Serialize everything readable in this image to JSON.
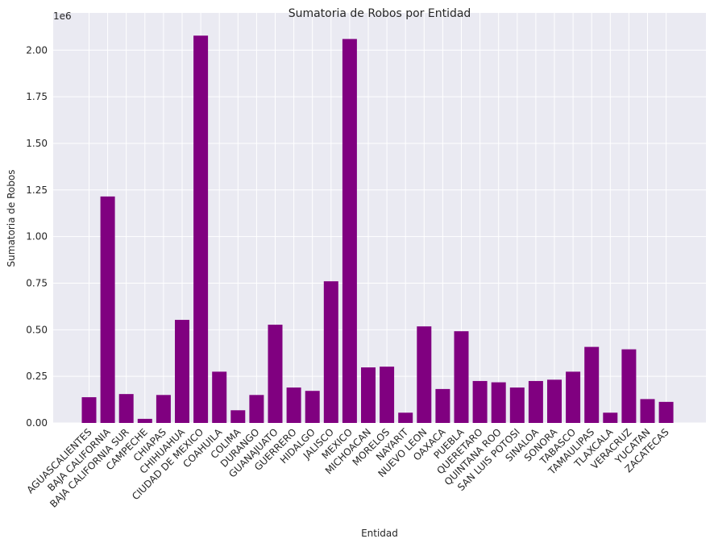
{
  "chart_data": {
    "type": "bar",
    "title": "Sumatoria de Robos por Entidad",
    "xlabel": "Entidad",
    "ylabel": "Sumatoria de Robos",
    "offset_label": "1e6",
    "ylim": [
      0,
      2.2
    ],
    "yticks": [
      "0.00",
      "0.25",
      "0.50",
      "0.75",
      "1.00",
      "1.25",
      "1.50",
      "1.75",
      "2.00"
    ],
    "grid": true,
    "bar_color": "#800080",
    "background_color": "#EAEAF2",
    "categories": [
      "AGUASCALIENTES",
      "BAJA CALIFORNIA",
      "BAJA CALIFORNIA SUR",
      "CAMPECHE",
      "CHIAPAS",
      "CHIHUAHUA",
      "CIUDAD DE MEXICO",
      "COAHUILA",
      "COLIMA",
      "DURANGO",
      "GUANAJUATO",
      "GUERRERO",
      "HIDALGO",
      "JALISCO",
      "MEXICO",
      "MICHOACAN",
      "MORELOS",
      "NAYARIT",
      "NUEVO LEON",
      "OAXACA",
      "PUEBLA",
      "QUERETARO",
      "QUINTANA ROO",
      "SAN LUIS POTOSI",
      "SINALOA",
      "SONORA",
      "TABASCO",
      "TAMAULIPAS",
      "TLAXCALA",
      "VERACRUZ",
      "YUCATAN",
      "ZACATECAS"
    ],
    "values": [
      0.138,
      1.215,
      0.155,
      0.022,
      0.15,
      0.553,
      2.078,
      0.275,
      0.068,
      0.15,
      0.527,
      0.19,
      0.172,
      0.76,
      2.06,
      0.298,
      0.302,
      0.055,
      0.518,
      0.182,
      0.492,
      0.225,
      0.218,
      0.19,
      0.225,
      0.232,
      0.275,
      0.408,
      0.055,
      0.395,
      0.128,
      0.113
    ]
  }
}
